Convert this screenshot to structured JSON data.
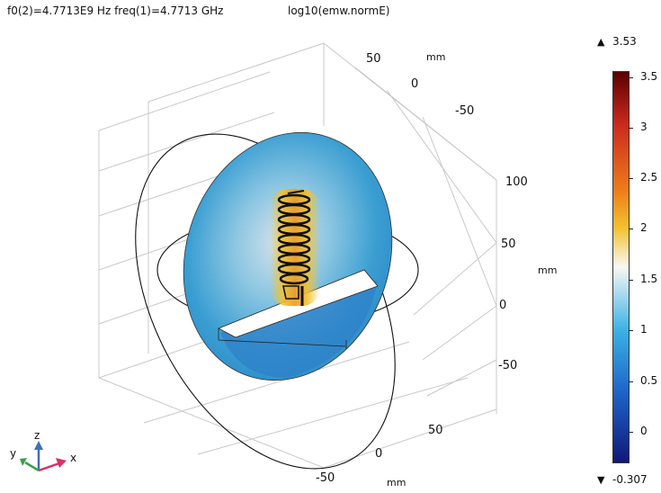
{
  "plot": {
    "title_left": "f0(2)=4.7713E9 Hz freq(1)=4.7713 GHz",
    "title_right": "log10(emw.normE)"
  },
  "axes": {
    "top_ticks": [
      "50",
      "0",
      "-50"
    ],
    "top_unit": "mm",
    "right_ticks": [
      "100",
      "50",
      "0",
      "-50"
    ],
    "right_unit": "mm",
    "bottom_ticks": [
      "50",
      "0",
      "-50"
    ],
    "bottom_unit": "mm"
  },
  "triad": {
    "x": "x",
    "y": "y",
    "z": "z"
  },
  "colorbar": {
    "max_label": "3.53",
    "min_label": "-0.307",
    "ticks": [
      "3.5",
      "3",
      "2.5",
      "2",
      "1.5",
      "1",
      "0.5",
      "0"
    ],
    "colors": {
      "top": "#5a0000",
      "red": "#c8281e",
      "orange": "#ee7a1a",
      "yellow": "#f2c230",
      "white": "#f8f8f4",
      "cyan": "#3cb2e6",
      "blue": "#1e64c8",
      "bottom": "#101878"
    }
  }
}
